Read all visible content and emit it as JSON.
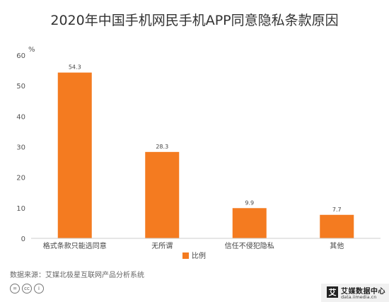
{
  "title": "2020年中国手机网民手机APP同意隐私条款原因",
  "source": "数据来源：艾媒北极星互联网产品分析系统",
  "license_icons": [
    "=",
    "cc",
    "i"
  ],
  "logo": {
    "mark": "艾",
    "name": "艾媒数据中心",
    "url": "data.iimedia.cn"
  },
  "colors": {
    "bar": "#f47b20",
    "axis": "#cccccc",
    "text": "#333333"
  },
  "chart_data": {
    "type": "bar",
    "title": "2020年中国手机网民手机APP同意隐私条款原因",
    "categories": [
      "格式条款只能选同意",
      "无所谓",
      "信任不侵犯隐私",
      "其他"
    ],
    "series": [
      {
        "name": "比例",
        "values": [
          54.3,
          28.3,
          9.9,
          7.7
        ]
      }
    ],
    "value_labels": [
      "54.3",
      "28.3",
      "9.9",
      "7.7"
    ],
    "ylabel": "%",
    "ylim": [
      0,
      60
    ],
    "yticks": [
      0,
      10,
      20,
      30,
      40,
      50,
      60
    ],
    "grid": false,
    "legend": "bottom"
  }
}
